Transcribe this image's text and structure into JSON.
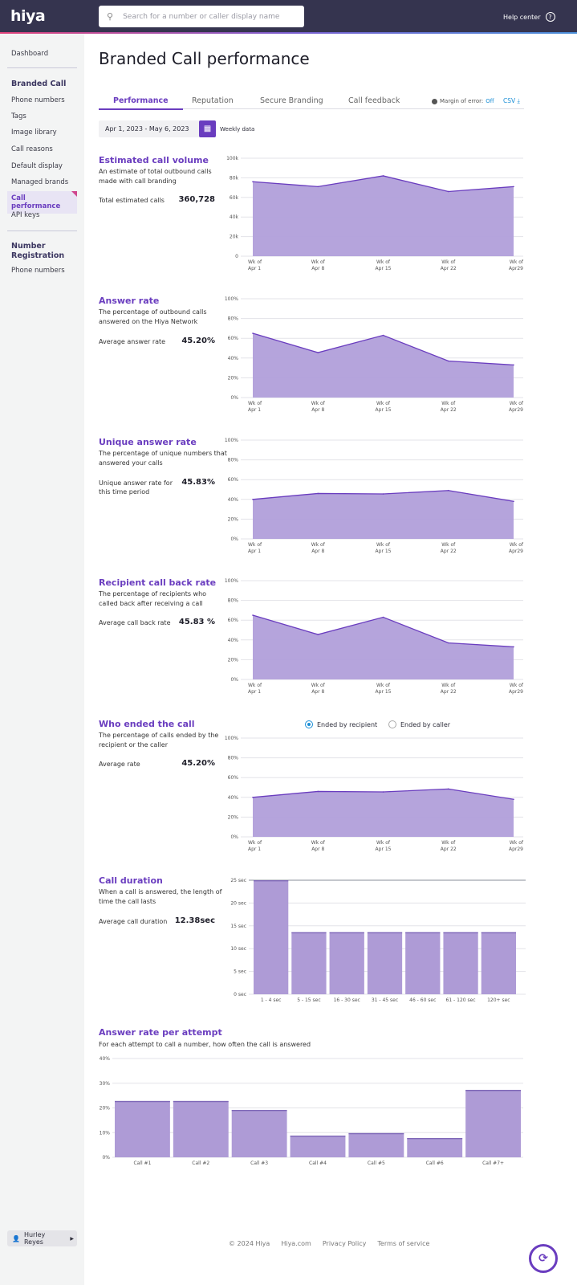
{
  "header": {
    "logo": "hiya",
    "search_placeholder": "Search for a number or caller display name",
    "help_label": "Help center"
  },
  "sidebar": {
    "dashboard": "Dashboard",
    "branded_call": {
      "heading": "Branded Call",
      "items": [
        "Phone numbers",
        "Tags",
        "Image library",
        "Call reasons",
        "Default display",
        "Managed brands",
        "Call performance",
        "API keys"
      ],
      "active": "Call performance"
    },
    "number_registration": {
      "heading": "Number Registration",
      "items": [
        "Phone numbers"
      ]
    },
    "user": "Hurley Reyes"
  },
  "page": {
    "title": "Branded Call performance",
    "tabs": [
      "Performance",
      "Reputation",
      "Secure Branding",
      "Call feedback"
    ],
    "active_tab": "Performance",
    "margin_label": "Margin of error:",
    "margin_value": "Off",
    "csv": "CSV",
    "date_range": "Apr 1, 2023 - May 6, 2023",
    "granularity": "Weekly data"
  },
  "accent_color": "#6a3dbf",
  "area_color": "#b19fda",
  "sections": [
    {
      "title": "Estimated call volume",
      "desc": "An estimate of total outbound calls made with call branding",
      "label": "Total estimated calls",
      "value": "360,728"
    },
    {
      "title": "Answer rate",
      "desc": "The percentage of outbound calls answered on the Hiya Network",
      "label": "Average answer rate",
      "value": "45.20%"
    },
    {
      "title": "Unique answer rate",
      "desc": "The percentage of unique numbers that answered your calls",
      "label": "Unique answer rate for this time period",
      "value": "45.83%"
    },
    {
      "title": "Recipient call back rate",
      "desc": "The percentage of recipients who called back after receiving a call",
      "label": "Average call back rate",
      "value": "45.83 %"
    },
    {
      "title": "Who ended the call",
      "desc": "The percentage of calls ended by the recipient or the caller",
      "label": "Average rate",
      "value": "45.20%",
      "options": [
        "Ended by recipient",
        "Ended by caller"
      ],
      "selected": "Ended by recipient"
    },
    {
      "title": "Call duration",
      "desc": "When a call is answered, the length of time the call lasts",
      "label": "Average call duration",
      "value": "12.38sec"
    },
    {
      "title": "Answer rate per attempt",
      "desc": "For each attempt to call a number, how often the call is answered"
    }
  ],
  "chart_data": [
    {
      "type": "area",
      "categories": [
        [
          "Wk of",
          "Apr 1"
        ],
        [
          "Wk of",
          "Apr 8"
        ],
        [
          "Wk of",
          "Apr 15"
        ],
        [
          "Wk of",
          "Apr 22"
        ],
        [
          "Wk of",
          "Apr29"
        ]
      ],
      "values": [
        76000,
        71000,
        82000,
        66000,
        71000
      ],
      "ylim": [
        0,
        100000
      ],
      "yticks": [
        "0",
        "20k",
        "40k",
        "60k",
        "80k",
        "100k"
      ],
      "grid": true
    },
    {
      "type": "area",
      "categories": [
        [
          "Wk of",
          "Apr 1"
        ],
        [
          "Wk of",
          "Apr 8"
        ],
        [
          "Wk of",
          "Apr 15"
        ],
        [
          "Wk of",
          "Apr 22"
        ],
        [
          "Wk of",
          "Apr29"
        ]
      ],
      "values": [
        65,
        45.5,
        63,
        37,
        33
      ],
      "ylim": [
        0,
        100
      ],
      "yticks": [
        "0%",
        "20%",
        "40%",
        "60%",
        "80%",
        "100%"
      ],
      "grid": true
    },
    {
      "type": "area",
      "categories": [
        [
          "Wk of",
          "Apr 1"
        ],
        [
          "Wk of",
          "Apr 8"
        ],
        [
          "Wk of",
          "Apr 15"
        ],
        [
          "Wk of",
          "Apr 22"
        ],
        [
          "Wk of",
          "Apr29"
        ]
      ],
      "values": [
        40,
        46,
        45.5,
        49,
        38
      ],
      "ylim": [
        0,
        100
      ],
      "yticks": [
        "0%",
        "20%",
        "40%",
        "60%",
        "80%",
        "100%"
      ],
      "grid": true
    },
    {
      "type": "area",
      "categories": [
        [
          "Wk of",
          "Apr 1"
        ],
        [
          "Wk of",
          "Apr 8"
        ],
        [
          "Wk of",
          "Apr 15"
        ],
        [
          "Wk of",
          "Apr 22"
        ],
        [
          "Wk of",
          "Apr29"
        ]
      ],
      "values": [
        65,
        45.5,
        63,
        37,
        33
      ],
      "ylim": [
        0,
        100
      ],
      "yticks": [
        "0%",
        "20%",
        "40%",
        "60%",
        "80%",
        "100%"
      ],
      "grid": true
    },
    {
      "type": "area",
      "categories": [
        [
          "Wk of",
          "Apr 1"
        ],
        [
          "Wk of",
          "Apr 8"
        ],
        [
          "Wk of",
          "Apr 15"
        ],
        [
          "Wk of",
          "Apr 22"
        ],
        [
          "Wk of",
          "Apr29"
        ]
      ],
      "values": [
        40,
        46,
        45.5,
        48.5,
        38
      ],
      "ylim": [
        0,
        100
      ],
      "yticks": [
        "0%",
        "20%",
        "40%",
        "60%",
        "80%",
        "100%"
      ],
      "grid": true
    },
    {
      "type": "bar",
      "categories": [
        "1 - 4 sec",
        "5 - 15 sec",
        "16 - 30 sec",
        "31 - 45 sec",
        "46 - 60 sec",
        "61 - 120 sec",
        "120+ sec"
      ],
      "values": [
        25,
        13.6,
        13.6,
        13.6,
        13.6,
        13.6,
        13.6
      ],
      "ylim": [
        0,
        25
      ],
      "yticks": [
        "0 sec",
        "5 sec",
        "10 sec",
        "15 sec",
        "20 sec",
        "25 sec"
      ],
      "grid": true
    },
    {
      "type": "bar",
      "categories": [
        "Call #1",
        "Call #2",
        "Call #3",
        "Call #4",
        "Call #5",
        "Call #6",
        "Call #7+"
      ],
      "values": [
        22.8,
        22.8,
        19.2,
        8.8,
        9.8,
        7.8,
        27.3
      ],
      "ylim": [
        0,
        40
      ],
      "yticks": [
        "0%",
        "10%",
        "20%",
        "30%",
        "40%"
      ],
      "grid": true
    }
  ],
  "footer": {
    "copyright": "© 2024 Hiya",
    "links": [
      "Hiya.com",
      "Privacy Policy",
      "Terms of service"
    ]
  }
}
